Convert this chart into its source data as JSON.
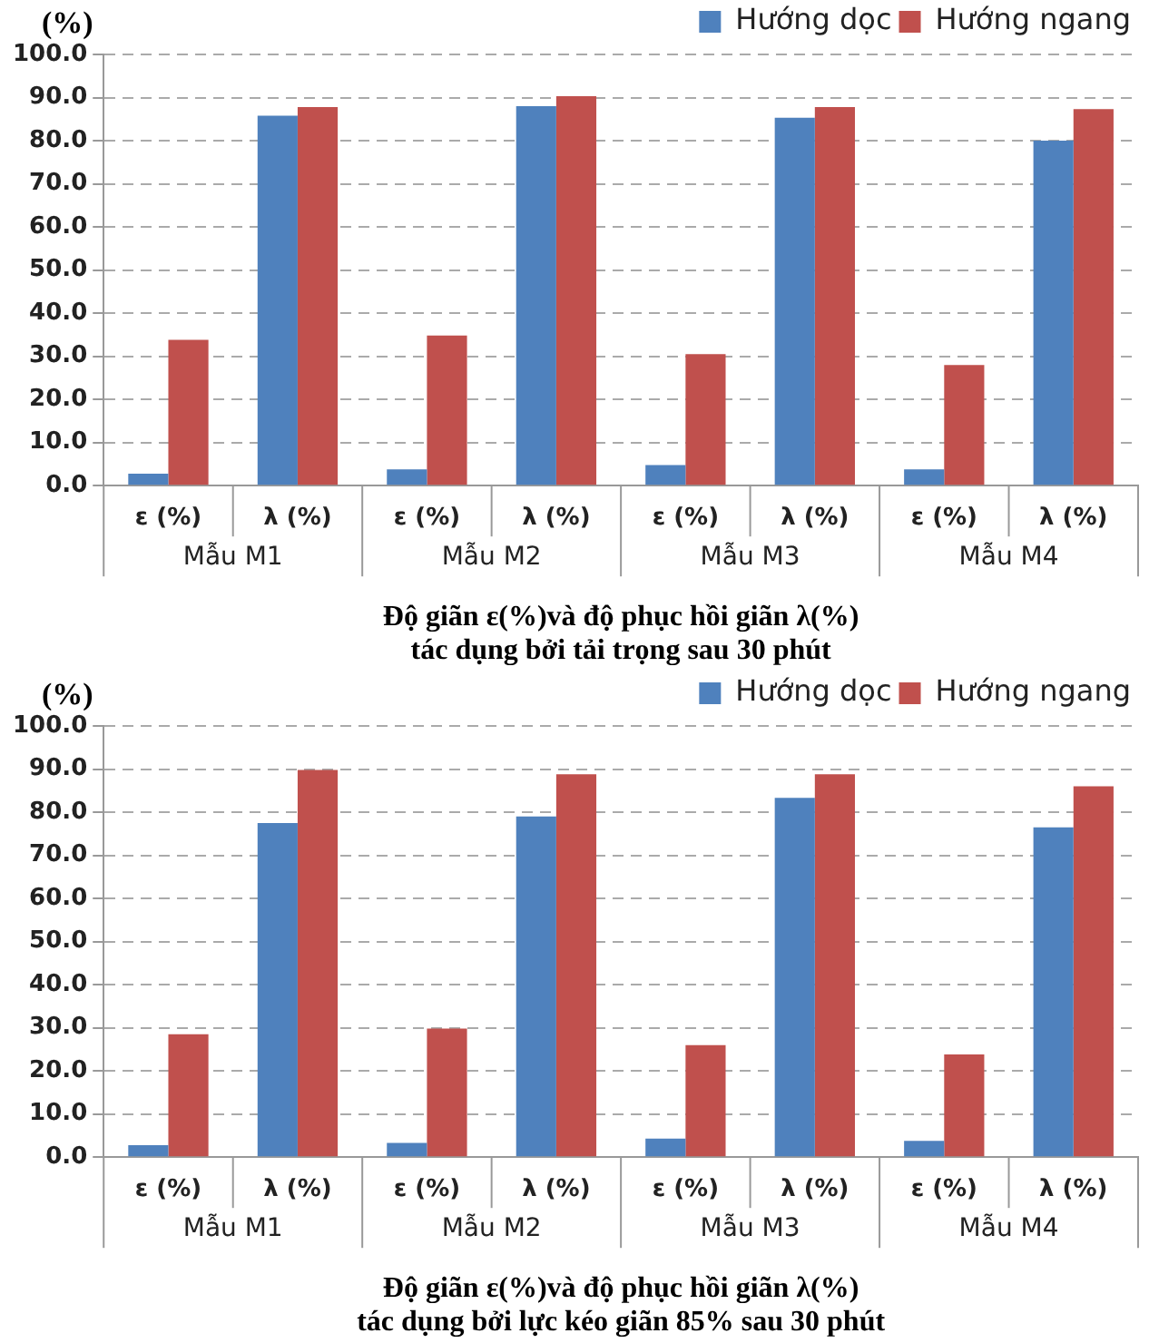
{
  "chart_data": [
    {
      "type": "bar",
      "ylabel": "(%)",
      "xlabel": "Độ giãn ε(%)và độ phục hồi giãn λ(%)\ntác dụng bởi tải trọng sau 30 phút",
      "categories": [
        "ε (%)",
        "λ (%)",
        "ε (%)",
        "λ (%)",
        "ε (%)",
        "λ (%)",
        "ε (%)",
        "λ (%)"
      ],
      "annotations": [
        "Mẫu M1",
        "Mẫu M2",
        "Mẫu M3",
        "Mẫu M4"
      ],
      "series": [
        {
          "name": "Hướng dọc",
          "color": "#4f81bd",
          "values": [
            2.8,
            85.8,
            3.8,
            88.0,
            4.8,
            85.3,
            3.8,
            80.0
          ]
        },
        {
          "name": "Hướng ngang",
          "color": "#c0504d",
          "values": [
            33.8,
            87.8,
            34.8,
            90.3,
            30.5,
            87.8,
            28.0,
            87.3
          ]
        }
      ],
      "ylim": [
        0,
        100
      ],
      "yticks": [
        {
          "value": 0,
          "label": "0.0"
        },
        {
          "value": 10,
          "label": "10.0"
        },
        {
          "value": 20,
          "label": "20.0"
        },
        {
          "value": 30,
          "label": "30.0"
        },
        {
          "value": 40,
          "label": "40.0"
        },
        {
          "value": 50,
          "label": "50.0"
        },
        {
          "value": 60,
          "label": "60.0"
        },
        {
          "value": 70,
          "label": "70.0"
        },
        {
          "value": 80,
          "label": "80.0"
        },
        {
          "value": 90,
          "label": "90.0"
        },
        {
          "value": 100,
          "label": "100.0"
        }
      ],
      "grid": "y",
      "legend": "top right"
    },
    {
      "type": "bar",
      "ylabel": "(%)",
      "xlabel": "Độ giãn ε(%)và độ phục hồi giãn λ(%)\ntác dụng bởi lực kéo giãn 85% sau 30 phút",
      "categories": [
        "ε (%)",
        "λ (%)",
        "ε (%)",
        "λ (%)",
        "ε (%)",
        "λ (%)",
        "ε (%)",
        "λ (%)"
      ],
      "annotations": [
        "Mẫu M1",
        "Mẫu M2",
        "Mẫu M3",
        "Mẫu M4"
      ],
      "series": [
        {
          "name": "Hướng dọc",
          "color": "#4f81bd",
          "values": [
            2.8,
            77.5,
            3.3,
            79.0,
            4.3,
            83.3,
            3.8,
            76.5
          ]
        },
        {
          "name": "Hướng ngang",
          "color": "#c0504d",
          "values": [
            28.5,
            89.8,
            29.8,
            88.8,
            26.0,
            88.8,
            23.8,
            86.0
          ]
        }
      ],
      "ylim": [
        0,
        100
      ],
      "yticks": [
        {
          "value": 0,
          "label": "0.0"
        },
        {
          "value": 10,
          "label": "10.0"
        },
        {
          "value": 20,
          "label": "20.0"
        },
        {
          "value": 30,
          "label": "30.0"
        },
        {
          "value": 40,
          "label": "40.0"
        },
        {
          "value": 50,
          "label": "50.0"
        },
        {
          "value": 60,
          "label": "60.0"
        },
        {
          "value": 70,
          "label": "70.0"
        },
        {
          "value": 80,
          "label": "80.0"
        },
        {
          "value": 90,
          "label": "90.0"
        },
        {
          "value": 100,
          "label": "100.0"
        }
      ],
      "grid": "y",
      "legend": "top right"
    }
  ]
}
